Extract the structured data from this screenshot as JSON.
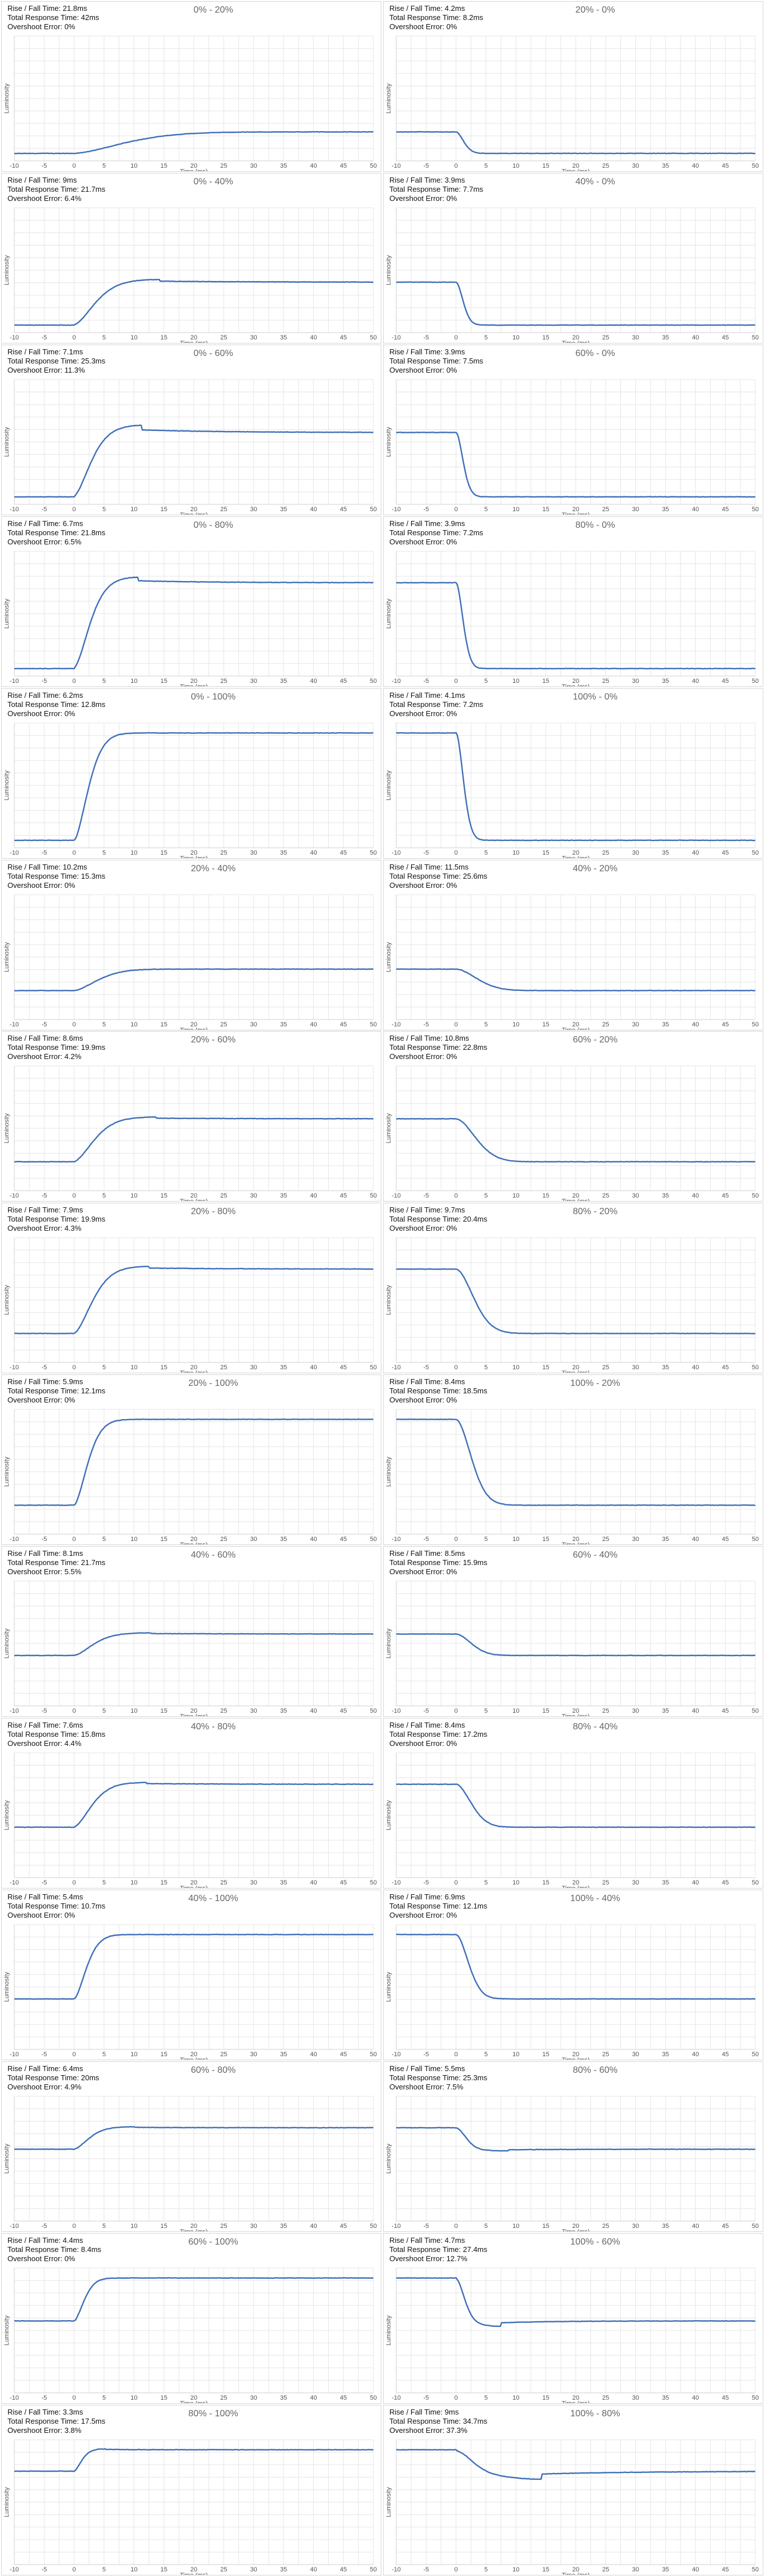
{
  "labels": {
    "rise_fall": "Rise / Fall Time: ",
    "total": "Total Response Time: ",
    "overshoot": "Overshoot Error: "
  },
  "colors": {
    "line": "#3f6fb9",
    "grid": "#e6e6e6"
  },
  "chart_data": [
    {
      "type": "line",
      "title": "0% - 20%",
      "from": 0,
      "to": 20,
      "rise_fall": "21.8ms",
      "total": "42ms",
      "overshoot": "0%",
      "xlabel": "Time (ms)",
      "ylabel": "Luminosity",
      "xlim": [
        -10,
        50
      ],
      "x_ticks": [
        -10,
        -5,
        0,
        5,
        10,
        15,
        20,
        25,
        30,
        35,
        40,
        45,
        50
      ]
    },
    {
      "type": "line",
      "title": "20% - 0%",
      "from": 20,
      "to": 0,
      "rise_fall": "4.2ms",
      "total": "8.2ms",
      "overshoot": "0%",
      "xlabel": "Time (ms)",
      "ylabel": "Luminosity",
      "xlim": [
        -10,
        50
      ],
      "x_ticks": [
        -10,
        -5,
        0,
        5,
        10,
        15,
        20,
        25,
        30,
        35,
        40,
        45,
        50
      ]
    },
    {
      "type": "line",
      "title": "0% - 40%",
      "from": 0,
      "to": 40,
      "rise_fall": "9ms",
      "total": "21.7ms",
      "overshoot": "6.4%",
      "xlabel": "Time (ms)",
      "ylabel": "Luminosity",
      "xlim": [
        -10,
        50
      ],
      "x_ticks": [
        -10,
        -5,
        0,
        5,
        10,
        15,
        20,
        25,
        30,
        35,
        40,
        45,
        50
      ]
    },
    {
      "type": "line",
      "title": "40% - 0%",
      "from": 40,
      "to": 0,
      "rise_fall": "3.9ms",
      "total": "7.7ms",
      "overshoot": "0%",
      "xlabel": "Time (ms)",
      "ylabel": "Luminosity",
      "xlim": [
        -10,
        50
      ],
      "x_ticks": [
        -10,
        -5,
        0,
        5,
        10,
        15,
        20,
        25,
        30,
        35,
        40,
        45,
        50
      ]
    },
    {
      "type": "line",
      "title": "0% - 60%",
      "from": 0,
      "to": 60,
      "rise_fall": "7.1ms",
      "total": "25.3ms",
      "overshoot": "11.3%",
      "xlabel": "Time (ms)",
      "ylabel": "Luminosity",
      "xlim": [
        -10,
        50
      ],
      "x_ticks": [
        -10,
        -5,
        0,
        5,
        10,
        15,
        20,
        25,
        30,
        35,
        40,
        45,
        50
      ]
    },
    {
      "type": "line",
      "title": "60% - 0%",
      "from": 60,
      "to": 0,
      "rise_fall": "3.9ms",
      "total": "7.5ms",
      "overshoot": "0%",
      "xlabel": "Time (ms)",
      "ylabel": "Luminosity",
      "xlim": [
        -10,
        50
      ],
      "x_ticks": [
        -10,
        -5,
        0,
        5,
        10,
        15,
        20,
        25,
        30,
        35,
        40,
        45,
        50
      ]
    },
    {
      "type": "line",
      "title": "0% - 80%",
      "from": 0,
      "to": 80,
      "rise_fall": "6.7ms",
      "total": "21.8ms",
      "overshoot": "6.5%",
      "xlabel": "Time (ms)",
      "ylabel": "Luminosity",
      "xlim": [
        -10,
        50
      ],
      "x_ticks": [
        -10,
        -5,
        0,
        5,
        10,
        15,
        20,
        25,
        30,
        35,
        40,
        45,
        50
      ]
    },
    {
      "type": "line",
      "title": "80% - 0%",
      "from": 80,
      "to": 0,
      "rise_fall": "3.9ms",
      "total": "7.2ms",
      "overshoot": "0%",
      "xlabel": "Time (ms)",
      "ylabel": "Luminosity",
      "xlim": [
        -10,
        50
      ],
      "x_ticks": [
        -10,
        -5,
        0,
        5,
        10,
        15,
        20,
        25,
        30,
        35,
        40,
        45,
        50
      ]
    },
    {
      "type": "line",
      "title": "0% - 100%",
      "from": 0,
      "to": 100,
      "rise_fall": "6.2ms",
      "total": "12.8ms",
      "overshoot": "0%",
      "xlabel": "Time (ms)",
      "ylabel": "Luminosity",
      "xlim": [
        -10,
        50
      ],
      "x_ticks": [
        -10,
        -5,
        0,
        5,
        10,
        15,
        20,
        25,
        30,
        35,
        40,
        45,
        50
      ]
    },
    {
      "type": "line",
      "title": "100% - 0%",
      "from": 100,
      "to": 0,
      "rise_fall": "4.1ms",
      "total": "7.2ms",
      "overshoot": "0%",
      "xlabel": "Time (ms)",
      "ylabel": "Luminosity",
      "xlim": [
        -10,
        50
      ],
      "x_ticks": [
        -10,
        -5,
        0,
        5,
        10,
        15,
        20,
        25,
        30,
        35,
        40,
        45,
        50
      ]
    },
    {
      "type": "line",
      "title": "20% - 40%",
      "from": 20,
      "to": 40,
      "rise_fall": "10.2ms",
      "total": "15.3ms",
      "overshoot": "0%",
      "xlabel": "Time (ms)",
      "ylabel": "Luminosity",
      "xlim": [
        -10,
        50
      ],
      "x_ticks": [
        -10,
        -5,
        0,
        5,
        10,
        15,
        20,
        25,
        30,
        35,
        40,
        45,
        50
      ]
    },
    {
      "type": "line",
      "title": "40% - 20%",
      "from": 40,
      "to": 20,
      "rise_fall": "11.5ms",
      "total": "25.6ms",
      "overshoot": "0%",
      "xlabel": "Time (ms)",
      "ylabel": "Luminosity",
      "xlim": [
        -10,
        50
      ],
      "x_ticks": [
        -10,
        -5,
        0,
        5,
        10,
        15,
        20,
        25,
        30,
        35,
        40,
        45,
        50
      ]
    },
    {
      "type": "line",
      "title": "20% - 60%",
      "from": 20,
      "to": 60,
      "rise_fall": "8.6ms",
      "total": "19.9ms",
      "overshoot": "4.2%",
      "xlabel": "Time (ms)",
      "ylabel": "Luminosity",
      "xlim": [
        -10,
        50
      ],
      "x_ticks": [
        -10,
        -5,
        0,
        5,
        10,
        15,
        20,
        25,
        30,
        35,
        40,
        45,
        50
      ]
    },
    {
      "type": "line",
      "title": "60% - 20%",
      "from": 60,
      "to": 20,
      "rise_fall": "10.8ms",
      "total": "22.8ms",
      "overshoot": "0%",
      "xlabel": "Time (ms)",
      "ylabel": "Luminosity",
      "xlim": [
        -10,
        50
      ],
      "x_ticks": [
        -10,
        -5,
        0,
        5,
        10,
        15,
        20,
        25,
        30,
        35,
        40,
        45,
        50
      ]
    },
    {
      "type": "line",
      "title": "20% - 80%",
      "from": 20,
      "to": 80,
      "rise_fall": "7.9ms",
      "total": "19.9ms",
      "overshoot": "4.3%",
      "xlabel": "Time (ms)",
      "ylabel": "Luminosity",
      "xlim": [
        -10,
        50
      ],
      "x_ticks": [
        -10,
        -5,
        0,
        5,
        10,
        15,
        20,
        25,
        30,
        35,
        40,
        45,
        50
      ]
    },
    {
      "type": "line",
      "title": "80% - 20%",
      "from": 80,
      "to": 20,
      "rise_fall": "9.7ms",
      "total": "20.4ms",
      "overshoot": "0%",
      "xlabel": "Time (ms)",
      "ylabel": "Luminosity",
      "xlim": [
        -10,
        50
      ],
      "x_ticks": [
        -10,
        -5,
        0,
        5,
        10,
        15,
        20,
        25,
        30,
        35,
        40,
        45,
        50
      ]
    },
    {
      "type": "line",
      "title": "20% - 100%",
      "from": 20,
      "to": 100,
      "rise_fall": "5.9ms",
      "total": "12.1ms",
      "overshoot": "0%",
      "xlabel": "Time (ms)",
      "ylabel": "Luminosity",
      "xlim": [
        -10,
        50
      ],
      "x_ticks": [
        -10,
        -5,
        0,
        5,
        10,
        15,
        20,
        25,
        30,
        35,
        40,
        45,
        50
      ]
    },
    {
      "type": "line",
      "title": "100% - 20%",
      "from": 100,
      "to": 20,
      "rise_fall": "8.4ms",
      "total": "18.5ms",
      "overshoot": "0%",
      "xlabel": "Time (ms)",
      "ylabel": "Luminosity",
      "xlim": [
        -10,
        50
      ],
      "x_ticks": [
        -10,
        -5,
        0,
        5,
        10,
        15,
        20,
        25,
        30,
        35,
        40,
        45,
        50
      ]
    },
    {
      "type": "line",
      "title": "40% - 60%",
      "from": 40,
      "to": 60,
      "rise_fall": "8.1ms",
      "total": "21.7ms",
      "overshoot": "5.5%",
      "xlabel": "Time (ms)",
      "ylabel": "Luminosity",
      "xlim": [
        -10,
        50
      ],
      "x_ticks": [
        -10,
        -5,
        0,
        5,
        10,
        15,
        20,
        25,
        30,
        35,
        40,
        45,
        50
      ]
    },
    {
      "type": "line",
      "title": "60% - 40%",
      "from": 60,
      "to": 40,
      "rise_fall": "8.5ms",
      "total": "15.9ms",
      "overshoot": "0%",
      "xlabel": "Time (ms)",
      "ylabel": "Luminosity",
      "xlim": [
        -10,
        50
      ],
      "x_ticks": [
        -10,
        -5,
        0,
        5,
        10,
        15,
        20,
        25,
        30,
        35,
        40,
        45,
        50
      ]
    },
    {
      "type": "line",
      "title": "40% - 80%",
      "from": 40,
      "to": 80,
      "rise_fall": "7.6ms",
      "total": "15.8ms",
      "overshoot": "4.4%",
      "xlabel": "Time (ms)",
      "ylabel": "Luminosity",
      "xlim": [
        -10,
        50
      ],
      "x_ticks": [
        -10,
        -5,
        0,
        5,
        10,
        15,
        20,
        25,
        30,
        35,
        40,
        45,
        50
      ]
    },
    {
      "type": "line",
      "title": "80% - 40%",
      "from": 80,
      "to": 40,
      "rise_fall": "8.4ms",
      "total": "17.2ms",
      "overshoot": "0%",
      "xlabel": "Time (ms)",
      "ylabel": "Luminosity",
      "xlim": [
        -10,
        50
      ],
      "x_ticks": [
        -10,
        -5,
        0,
        5,
        10,
        15,
        20,
        25,
        30,
        35,
        40,
        45,
        50
      ]
    },
    {
      "type": "line",
      "title": "40% - 100%",
      "from": 40,
      "to": 100,
      "rise_fall": "5.4ms",
      "total": "10.7ms",
      "overshoot": "0%",
      "xlabel": "Time (ms)",
      "ylabel": "Luminosity",
      "xlim": [
        -10,
        50
      ],
      "x_ticks": [
        -10,
        -5,
        0,
        5,
        10,
        15,
        20,
        25,
        30,
        35,
        40,
        45,
        50
      ]
    },
    {
      "type": "line",
      "title": "100% - 40%",
      "from": 100,
      "to": 40,
      "rise_fall": "6.9ms",
      "total": "12.1ms",
      "overshoot": "0%",
      "xlabel": "Time (ms)",
      "ylabel": "Luminosity",
      "xlim": [
        -10,
        50
      ],
      "x_ticks": [
        -10,
        -5,
        0,
        5,
        10,
        15,
        20,
        25,
        30,
        35,
        40,
        45,
        50
      ]
    },
    {
      "type": "line",
      "title": "60% - 80%",
      "from": 60,
      "to": 80,
      "rise_fall": "6.4ms",
      "total": "20ms",
      "overshoot": "4.9%",
      "xlabel": "Time (ms)",
      "ylabel": "Luminosity",
      "xlim": [
        -10,
        50
      ],
      "x_ticks": [
        -10,
        -5,
        0,
        5,
        10,
        15,
        20,
        25,
        30,
        35,
        40,
        45,
        50
      ]
    },
    {
      "type": "line",
      "title": "80% - 60%",
      "from": 80,
      "to": 60,
      "rise_fall": "5.5ms",
      "total": "25.3ms",
      "overshoot": "7.5%",
      "xlabel": "Time (ms)",
      "ylabel": "Luminosity",
      "xlim": [
        -10,
        50
      ],
      "x_ticks": [
        -10,
        -5,
        0,
        5,
        10,
        15,
        20,
        25,
        30,
        35,
        40,
        45,
        50
      ]
    },
    {
      "type": "line",
      "title": "60% - 100%",
      "from": 60,
      "to": 100,
      "rise_fall": "4.4ms",
      "total": "8.4ms",
      "overshoot": "0%",
      "xlabel": "Time (ms)",
      "ylabel": "Luminosity",
      "xlim": [
        -10,
        50
      ],
      "x_ticks": [
        -10,
        -5,
        0,
        5,
        10,
        15,
        20,
        25,
        30,
        35,
        40,
        45,
        50
      ]
    },
    {
      "type": "line",
      "title": "100% - 60%",
      "from": 100,
      "to": 60,
      "rise_fall": "4.7ms",
      "total": "27.4ms",
      "overshoot": "12.7%",
      "xlabel": "Time (ms)",
      "ylabel": "Luminosity",
      "xlim": [
        -10,
        50
      ],
      "x_ticks": [
        -10,
        -5,
        0,
        5,
        10,
        15,
        20,
        25,
        30,
        35,
        40,
        45,
        50
      ]
    },
    {
      "type": "line",
      "title": "80% - 100%",
      "from": 80,
      "to": 100,
      "rise_fall": "3.3ms",
      "total": "17.5ms",
      "overshoot": "3.8%",
      "xlabel": "Time (ms)",
      "ylabel": "Luminosity",
      "xlim": [
        -10,
        50
      ],
      "x_ticks": [
        -10,
        -5,
        0,
        5,
        10,
        15,
        20,
        25,
        30,
        35,
        40,
        45,
        50
      ]
    },
    {
      "type": "line",
      "title": "100% - 80%",
      "from": 100,
      "to": 80,
      "rise_fall": "9ms",
      "total": "34.7ms",
      "overshoot": "37.3%",
      "xlabel": "Time (ms)",
      "ylabel": "Luminosity",
      "xlim": [
        -10,
        50
      ],
      "x_ticks": [
        -10,
        -5,
        0,
        5,
        10,
        15,
        20,
        25,
        30,
        35,
        40,
        45,
        50
      ]
    }
  ]
}
